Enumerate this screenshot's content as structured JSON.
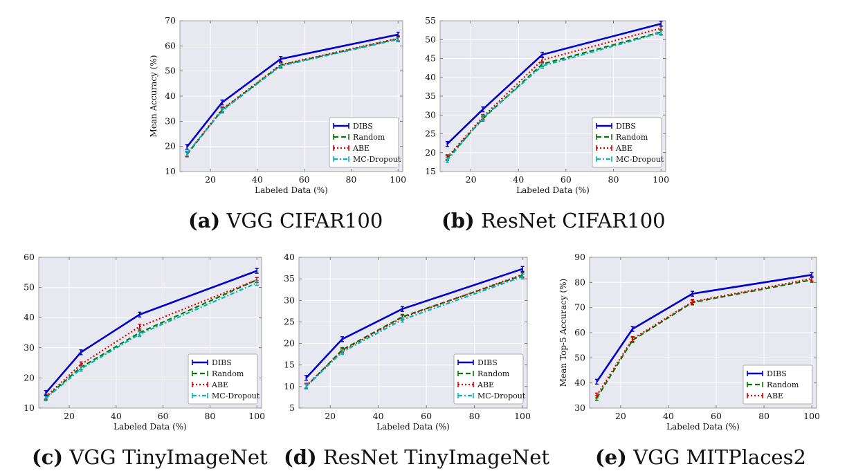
{
  "colors": {
    "DIBS": "#0000cc",
    "Random": "#007a00",
    "ABE": "#dd0000",
    "MC-Dropout": "#00b5c0",
    "plot_bg": "#e8e8f0",
    "grid": "#ffffff"
  },
  "captions": [
    {
      "label": "(a)",
      "text": "VGG CIFAR100"
    },
    {
      "label": "(b)",
      "text": "ResNet CIFAR100"
    },
    {
      "label": "(c)",
      "text": "VGG TinyImageNet"
    },
    {
      "label": "(d)",
      "text": "ResNet TinyImageNet"
    },
    {
      "label": "(e)",
      "text": "VGG MITPlaces2"
    }
  ],
  "chart_data": [
    {
      "type": "line",
      "title": "VGG CIFAR100",
      "xlabel": "Labeled Data (%)",
      "ylabel": "Mean Accuracy (%)",
      "xlim": [
        7,
        102
      ],
      "ylim": [
        10,
        70
      ],
      "xticks": [
        "20",
        "40",
        "60",
        "80",
        "100"
      ],
      "yticks": [
        "10",
        "20",
        "30",
        "40",
        "50",
        "60",
        "70"
      ],
      "x": [
        10,
        25,
        50,
        100
      ],
      "series": [
        {
          "name": "DIBS",
          "values": [
            19.8,
            37.5,
            54.8,
            64.5
          ]
        },
        {
          "name": "Random",
          "values": [
            16.8,
            34.5,
            52.3,
            62.8
          ]
        },
        {
          "name": "ABE",
          "values": [
            17.0,
            34.8,
            52.5,
            63.0
          ]
        },
        {
          "name": "MC-Dropout",
          "values": [
            17.2,
            34.2,
            52.0,
            62.6
          ]
        }
      ],
      "legend": "lower-right"
    },
    {
      "type": "line",
      "title": "ResNet CIFAR100",
      "xlabel": "Labeled Data (%)",
      "ylabel": "",
      "xlim": [
        7,
        102
      ],
      "ylim": [
        15,
        55
      ],
      "xticks": [
        "20",
        "40",
        "60",
        "80",
        "100"
      ],
      "yticks": [
        "15",
        "20",
        "25",
        "30",
        "35",
        "40",
        "45",
        "50",
        "55"
      ],
      "x": [
        10,
        25,
        50,
        100
      ],
      "series": [
        {
          "name": "DIBS",
          "values": [
            22.3,
            31.5,
            46.0,
            54.2
          ]
        },
        {
          "name": "Random",
          "values": [
            18.5,
            29.0,
            43.5,
            52.0
          ]
        },
        {
          "name": "ABE",
          "values": [
            18.8,
            29.5,
            44.6,
            53.0
          ]
        },
        {
          "name": "MC-Dropout",
          "values": [
            18.0,
            29.2,
            43.0,
            51.8
          ]
        }
      ],
      "legend": "lower-right"
    },
    {
      "type": "line",
      "title": "VGG TinyImageNet",
      "xlabel": "Labeled Data (%)",
      "ylabel": "",
      "xlim": [
        7,
        102
      ],
      "ylim": [
        10,
        60
      ],
      "xticks": [
        "20",
        "40",
        "60",
        "80",
        "100"
      ],
      "yticks": [
        "10",
        "20",
        "30",
        "40",
        "50",
        "60"
      ],
      "x": [
        10,
        25,
        50,
        100
      ],
      "series": [
        {
          "name": "DIBS",
          "values": [
            15.0,
            28.5,
            41.0,
            55.5
          ]
        },
        {
          "name": "Random",
          "values": [
            13.5,
            23.5,
            35.0,
            52.5
          ]
        },
        {
          "name": "ABE",
          "values": [
            13.8,
            24.5,
            37.0,
            52.5
          ]
        },
        {
          "name": "MC-Dropout",
          "values": [
            13.2,
            23.0,
            34.5,
            51.5
          ]
        }
      ],
      "legend": "lower-right"
    },
    {
      "type": "line",
      "title": "ResNet TinyImageNet",
      "xlabel": "Labeled Data (%)",
      "ylabel": "",
      "xlim": [
        7,
        102
      ],
      "ylim": [
        5,
        40
      ],
      "xticks": [
        "20",
        "40",
        "60",
        "80",
        "100"
      ],
      "yticks": [
        "5",
        "10",
        "15",
        "20",
        "25",
        "30",
        "35",
        "40"
      ],
      "x": [
        10,
        25,
        50,
        100
      ],
      "series": [
        {
          "name": "DIBS",
          "values": [
            12.0,
            21.0,
            28.0,
            37.3
          ]
        },
        {
          "name": "Random",
          "values": [
            10.0,
            18.5,
            26.2,
            35.8
          ]
        },
        {
          "name": "ABE",
          "values": [
            10.2,
            18.3,
            26.0,
            36.0
          ]
        },
        {
          "name": "MC-Dropout",
          "values": [
            10.0,
            18.0,
            25.5,
            35.5
          ]
        }
      ],
      "legend": "lower-right"
    },
    {
      "type": "line",
      "title": "VGG MITPlaces2",
      "xlabel": "Labeled Data (%)",
      "ylabel": "Mean Top-5 Accuracy (%)",
      "xlim": [
        7,
        102
      ],
      "ylim": [
        30,
        90
      ],
      "xticks": [
        "20",
        "40",
        "60",
        "80",
        "100"
      ],
      "yticks": [
        "30",
        "40",
        "50",
        "60",
        "70",
        "80",
        "90"
      ],
      "x": [
        10,
        25,
        50,
        100
      ],
      "series": [
        {
          "name": "DIBS",
          "values": [
            40.5,
            61.5,
            75.5,
            83.0
          ]
        },
        {
          "name": "Random",
          "values": [
            34.0,
            57.0,
            72.0,
            81.0
          ]
        },
        {
          "name": "ABE",
          "values": [
            35.0,
            57.5,
            72.3,
            81.5
          ]
        }
      ],
      "legend": "lower-right"
    }
  ]
}
